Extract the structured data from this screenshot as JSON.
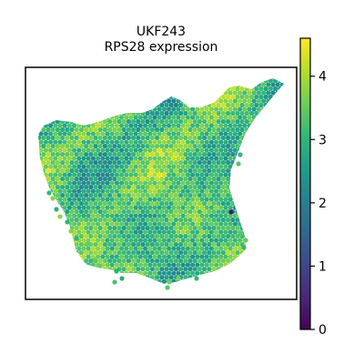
{
  "chart_data": {
    "type": "heatmap",
    "subtype": "spatial-spot-scatter",
    "title_line1": "UKF243",
    "title_line2": "RPS28 expression",
    "colormap": "viridis",
    "color_range": [
      0,
      4.6
    ],
    "colorbar_ticks": [
      "0",
      "1",
      "2",
      "3",
      "4"
    ],
    "colorbar_tick_values": [
      0,
      1,
      2,
      3,
      4
    ],
    "grid": false,
    "axes_visible": false,
    "typical_expression": 3.2,
    "outlier_spot_value": 0.3,
    "viridis_stops": [
      "#440154",
      "#482878",
      "#3e4989",
      "#31688e",
      "#26828e",
      "#1f9e89",
      "#35b779",
      "#6ece58",
      "#b5de2b",
      "#fde725"
    ]
  }
}
